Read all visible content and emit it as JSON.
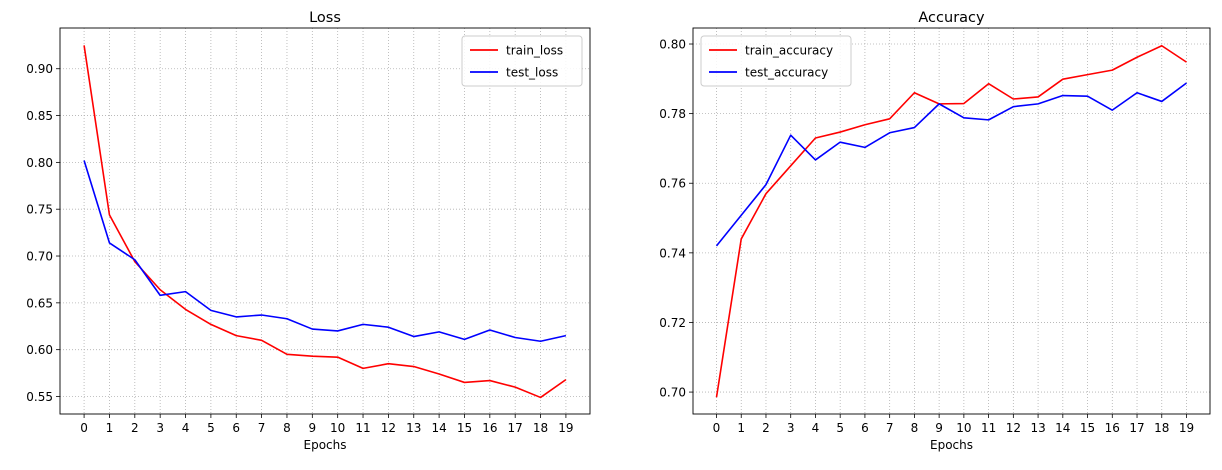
{
  "chart_data": [
    {
      "type": "line",
      "title": "Loss",
      "xlabel": "Epochs",
      "ylabel": "",
      "x": [
        0,
        1,
        2,
        3,
        4,
        5,
        6,
        7,
        8,
        9,
        10,
        11,
        12,
        13,
        14,
        15,
        16,
        17,
        18,
        19
      ],
      "xlim": [
        -0.95,
        19.95
      ],
      "ylim": [
        0.5313,
        0.9435
      ],
      "yticks": [
        0.55,
        0.6,
        0.65,
        0.7,
        0.75,
        0.8,
        0.85,
        0.9
      ],
      "ytick_labels": [
        "0.55",
        "0.60",
        "0.65",
        "0.70",
        "0.75",
        "0.80",
        "0.85",
        "0.90"
      ],
      "grid": true,
      "legend_position": "upper right",
      "series": [
        {
          "name": "train_loss",
          "color": "#ff0000",
          "values": [
            0.925,
            0.744,
            0.694,
            0.664,
            0.643,
            0.627,
            0.615,
            0.61,
            0.595,
            0.593,
            0.592,
            0.58,
            0.585,
            0.582,
            0.574,
            0.565,
            0.567,
            0.56,
            0.549,
            0.568
          ]
        },
        {
          "name": "test_loss",
          "color": "#0000ff",
          "values": [
            0.802,
            0.714,
            0.696,
            0.658,
            0.662,
            0.642,
            0.635,
            0.637,
            0.633,
            0.622,
            0.62,
            0.627,
            0.624,
            0.614,
            0.619,
            0.611,
            0.621,
            0.613,
            0.609,
            0.615
          ]
        }
      ]
    },
    {
      "type": "line",
      "title": "Accuracy",
      "xlabel": "Epochs",
      "ylabel": "",
      "x": [
        0,
        1,
        2,
        3,
        4,
        5,
        6,
        7,
        8,
        9,
        10,
        11,
        12,
        13,
        14,
        15,
        16,
        17,
        18,
        19
      ],
      "xlim": [
        -0.95,
        19.95
      ],
      "ylim": [
        0.6937,
        0.8046
      ],
      "yticks": [
        0.7,
        0.72,
        0.74,
        0.76,
        0.78,
        0.8
      ],
      "ytick_labels": [
        "0.70",
        "0.72",
        "0.74",
        "0.76",
        "0.78",
        "0.80"
      ],
      "grid": true,
      "legend_position": "upper left",
      "series": [
        {
          "name": "train_accuracy",
          "color": "#ff0000",
          "values": [
            0.6985,
            0.744,
            0.757,
            0.765,
            0.773,
            0.7747,
            0.7768,
            0.7785,
            0.786,
            0.7828,
            0.7829,
            0.7886,
            0.7842,
            0.7848,
            0.7899,
            0.7912,
            0.7925,
            0.7962,
            0.7995,
            0.7948
          ]
        },
        {
          "name": "test_accuracy",
          "color": "#0000ff",
          "values": [
            0.742,
            0.7508,
            0.7596,
            0.7738,
            0.7667,
            0.7718,
            0.7703,
            0.7745,
            0.776,
            0.7828,
            0.7788,
            0.7782,
            0.782,
            0.7828,
            0.7852,
            0.785,
            0.781,
            0.786,
            0.7835,
            0.7888
          ]
        }
      ]
    }
  ]
}
